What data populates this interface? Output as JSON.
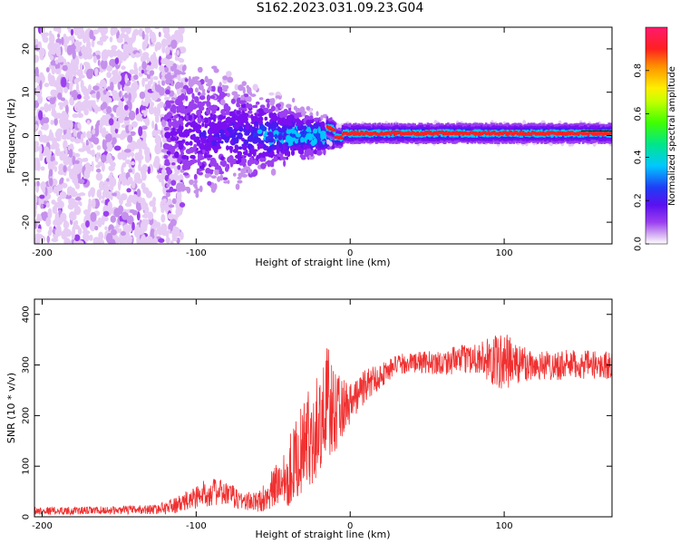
{
  "title": "S162.2023.031.09.23.G04",
  "chart_data": [
    {
      "type": "heatmap",
      "title": "S162.2023.031.09.23.G04",
      "xlabel": "Height of straight line (km)",
      "ylabel": "Frequency (Hz)",
      "xlim": [
        -205,
        170
      ],
      "ylim": [
        -25,
        25
      ],
      "xticks": [
        -200,
        -100,
        0,
        100
      ],
      "yticks": [
        -20,
        -10,
        0,
        10,
        20
      ],
      "colorbar": {
        "label": "Normalized spectral amplitude",
        "range": [
          0,
          1
        ],
        "ticks": [
          0.0,
          0.2,
          0.4,
          0.6,
          0.8
        ],
        "colormap": "rainbow (white-violet-blue-cyan-green-yellow-red-pink)"
      },
      "features": {
        "noise_region_km": [
          -205,
          -120
        ],
        "transition_region_km": [
          -120,
          -10
        ],
        "dominant_tone_start_km": -15,
        "dominant_tone_frequency_hz": 0.5,
        "dominant_tone_amplitude": 0.9
      },
      "colors": [
        "#ffffff",
        "#e6ccf5",
        "#c591ec",
        "#9b3ff0",
        "#7a10f0",
        "#4b1af2",
        "#1f3df5",
        "#00c8ff",
        "#00e68a",
        "#40ff00",
        "#ffee00",
        "#ff9000",
        "#ff2020",
        "#ff1a6e"
      ]
    },
    {
      "type": "line",
      "xlabel": "Height of straight line (km)",
      "ylabel": "SNR (10 * v/v)",
      "xlim": [
        -205,
        170
      ],
      "ylim": [
        0,
        430
      ],
      "xticks": [
        -200,
        -100,
        0,
        100
      ],
      "yticks": [
        0,
        100,
        200,
        300,
        400
      ],
      "series": [
        {
          "name": "SNR",
          "color": "#f03030",
          "x": [
            -205,
            -180,
            -150,
            -125,
            -110,
            -100,
            -90,
            -80,
            -70,
            -60,
            -50,
            -40,
            -30,
            -20,
            -15,
            -10,
            0,
            10,
            20,
            30,
            40,
            60,
            80,
            100,
            120,
            140,
            160,
            170
          ],
          "y": [
            12,
            12,
            13,
            15,
            25,
            40,
            50,
            45,
            32,
            28,
            55,
            90,
            140,
            190,
            220,
            215,
            225,
            260,
            280,
            300,
            305,
            305,
            315,
            305,
            300,
            300,
            300,
            300
          ],
          "noise_amplitude": [
            8,
            8,
            8,
            10,
            18,
            25,
            28,
            25,
            20,
            20,
            40,
            70,
            90,
            110,
            130,
            90,
            40,
            35,
            25,
            20,
            20,
            25,
            30,
            60,
            30,
            30,
            28,
            28
          ]
        }
      ]
    }
  ]
}
